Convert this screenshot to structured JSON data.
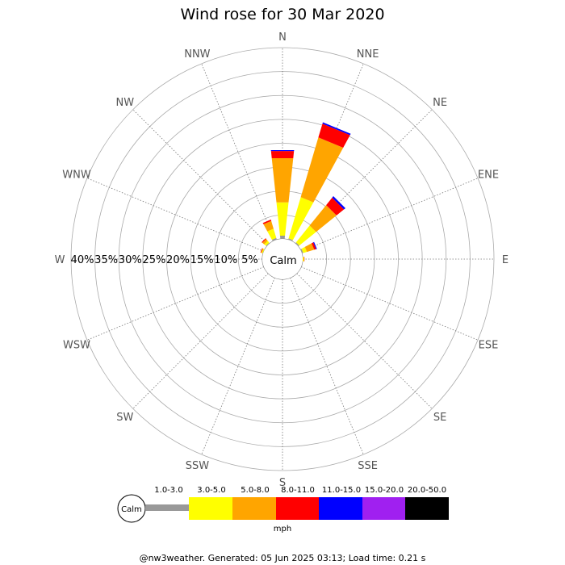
{
  "chart_data": {
    "type": "wind-rose",
    "title": "Wind rose for 30 Mar 2020",
    "directions": [
      "N",
      "NNE",
      "NE",
      "ENE",
      "E",
      "ESE",
      "SE",
      "SSE",
      "S",
      "SSW",
      "SW",
      "WSW",
      "W",
      "WNW",
      "NW",
      "NNW"
    ],
    "ring_labels": [
      "5%",
      "10%",
      "15%",
      "20%",
      "25%",
      "30%",
      "35%",
      "40%"
    ],
    "ring_max": 40,
    "calm_label": "Calm",
    "speed_bins": [
      {
        "name": "",
        "color": "#999999"
      },
      {
        "name": "1.0-3.0",
        "color": "#ffff00"
      },
      {
        "name": "3.0-5.0",
        "color": "#ffa500"
      },
      {
        "name": "5.0-8.0",
        "color": "#ff0000"
      },
      {
        "name": "8.0-11.0",
        "color": "#0000ff"
      },
      {
        "name": "11.0-15.0",
        "color": "#a020f0"
      },
      {
        "name": "15.0-20.0",
        "color": "#000000"
      },
      {
        "name": "20.0-50.0",
        "color": "#000000"
      }
    ],
    "series_by_direction": [
      {
        "direction": "N",
        "values": [
          0.7,
          7.0,
          9.3,
          1.5,
          0.2
        ]
      },
      {
        "direction": "NNE",
        "values": [
          0.3,
          9.0,
          13.0,
          3.0,
          0.3
        ]
      },
      {
        "direction": "NE",
        "values": [
          0.3,
          4.5,
          5.5,
          2.0,
          0.4
        ]
      },
      {
        "direction": "ENE",
        "values": [
          0.3,
          0.8,
          1.6,
          0.4,
          0.2
        ]
      },
      {
        "direction": "E",
        "values": [
          0.0,
          0.3,
          0.0,
          0.1,
          0.0
        ]
      },
      {
        "direction": "ESE",
        "values": [
          0,
          0,
          0,
          0,
          0
        ]
      },
      {
        "direction": "SE",
        "values": [
          0,
          0,
          0,
          0,
          0
        ]
      },
      {
        "direction": "SSE",
        "values": [
          0,
          0,
          0,
          0,
          0
        ]
      },
      {
        "direction": "S",
        "values": [
          0,
          0,
          0,
          0,
          0
        ]
      },
      {
        "direction": "SSW",
        "values": [
          0,
          0,
          0,
          0,
          0
        ]
      },
      {
        "direction": "SW",
        "values": [
          0,
          0,
          0,
          0,
          0
        ]
      },
      {
        "direction": "WSW",
        "values": [
          0,
          0,
          0,
          0,
          0
        ]
      },
      {
        "direction": "W",
        "values": [
          0,
          0,
          0,
          0,
          0
        ]
      },
      {
        "direction": "WNW",
        "values": [
          0.1,
          0.2,
          0.2,
          0.1,
          0
        ]
      },
      {
        "direction": "NW",
        "values": [
          0.2,
          0.5,
          0.5,
          0.2,
          0
        ]
      },
      {
        "direction": "NNW",
        "values": [
          0.4,
          2.0,
          1.7,
          0.3,
          0
        ]
      }
    ],
    "legend_unit": "mph",
    "grid": true
  },
  "footer": "@nw3weather. Generated: 05 Jun 2025 03:13; Load time: 0.21 s"
}
